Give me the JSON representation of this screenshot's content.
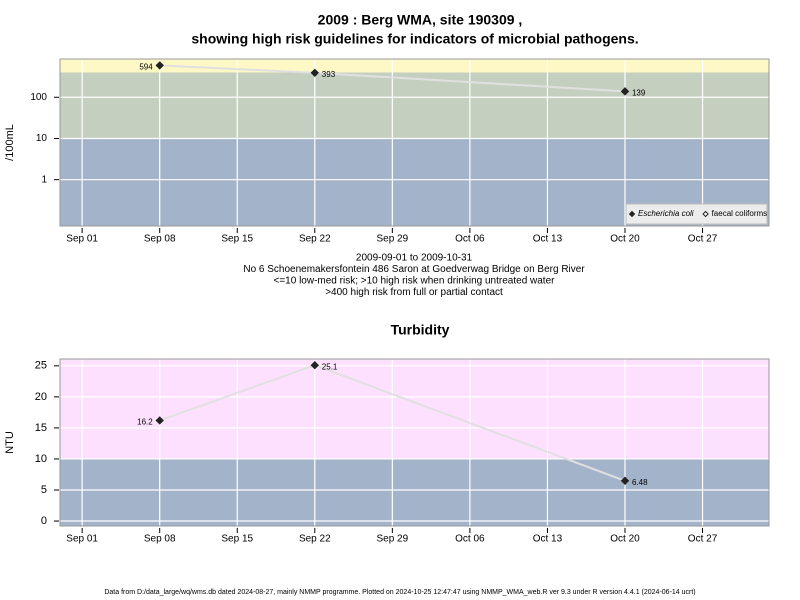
{
  "chart_data": [
    {
      "type": "line",
      "title": "2009 : Berg WMA, site 190309 ,",
      "subtitle": "showing high risk guidelines for indicators of microbial pathogens.",
      "y_label": "/100mL",
      "log_y": true,
      "x": [
        "2009-09-08",
        "2009-09-22",
        "2009-10-20"
      ],
      "series": [
        {
          "name": "Escherichia coli",
          "color": "#222222",
          "marker": "filled",
          "values": [
            594,
            393,
            139
          ]
        },
        {
          "name": "faecal coliforms",
          "color": "#222222",
          "marker": "open",
          "values": [
            null,
            null,
            null
          ]
        }
      ],
      "line_color": "#e0e0e0",
      "xlim": [
        "2009-08-30",
        "2009-11-02"
      ],
      "xticks": [
        {
          "value": "2009-09-01",
          "label": "Sep 01"
        },
        {
          "value": "2009-09-08",
          "label": "Sep 08"
        },
        {
          "value": "2009-09-15",
          "label": "Sep 15"
        },
        {
          "value": "2009-09-22",
          "label": "Sep 22"
        },
        {
          "value": "2009-09-29",
          "label": "Sep 29"
        },
        {
          "value": "2009-10-06",
          "label": "Oct 06"
        },
        {
          "value": "2009-10-13",
          "label": "Oct 13"
        },
        {
          "value": "2009-10-20",
          "label": "Oct 20"
        },
        {
          "value": "2009-10-27",
          "label": "Oct 27"
        }
      ],
      "ylim": [
        0.075,
        850
      ],
      "yticks": [
        1,
        10,
        100
      ],
      "thresholds": [
        10,
        400
      ],
      "band_colors": [
        "#a3b3ca",
        "#c5cfc0",
        "#fdf8c6"
      ],
      "grid": true,
      "legend": "bottom right",
      "notes": [
        "2009-09-01 to 2009-10-31",
        "No 6 Schoenemakersfontein 486 Saron at Goedverwag Bridge on Berg River",
        "<=10 low-med risk; >10 high risk when drinking untreated water",
        ">400 high risk from full or partial contact"
      ]
    },
    {
      "type": "line",
      "title": "Turbidity",
      "y_label": "NTU",
      "log_y": false,
      "x": [
        "2009-09-08",
        "2009-09-22",
        "2009-10-20"
      ],
      "series": [
        {
          "name": "Turbidity",
          "color": "#222222",
          "marker": "filled",
          "values": [
            16.2,
            25.1,
            6.48
          ]
        }
      ],
      "line_color": "#e0e0e0",
      "xlim": [
        "2009-08-30",
        "2009-11-02"
      ],
      "xticks": [
        {
          "value": "2009-09-01",
          "label": "Sep 01"
        },
        {
          "value": "2009-09-08",
          "label": "Sep 08"
        },
        {
          "value": "2009-09-15",
          "label": "Sep 15"
        },
        {
          "value": "2009-09-22",
          "label": "Sep 22"
        },
        {
          "value": "2009-09-29",
          "label": "Sep 29"
        },
        {
          "value": "2009-10-06",
          "label": "Oct 06"
        },
        {
          "value": "2009-10-13",
          "label": "Oct 13"
        },
        {
          "value": "2009-10-20",
          "label": "Oct 20"
        },
        {
          "value": "2009-10-27",
          "label": "Oct 27"
        }
      ],
      "ylim": [
        -0.8,
        26.1
      ],
      "yticks": [
        0,
        5,
        10,
        15,
        20,
        25
      ],
      "thresholds": [
        10
      ],
      "band_colors": [
        "#a3b3ca",
        "#fde0fd"
      ],
      "grid": true
    }
  ],
  "footer": "Data from D:/data_large/wq/wms.db dated 2024-08-27, mainly NMMP programme. Plotted on 2024-10-25 12:47:47 using NMMP_WMA_web.R ver 9.3 under R version 4.4.1 (2024-06-14 ucrt)"
}
